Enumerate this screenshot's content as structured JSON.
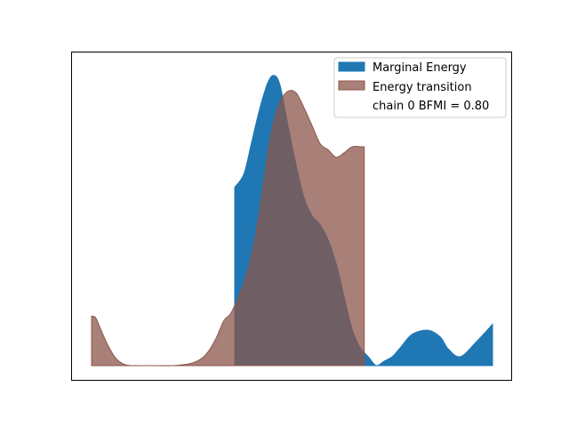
{
  "chart_data": {
    "type": "area",
    "title": "",
    "xlabel": "",
    "ylabel": "",
    "xlim": [
      0,
      1
    ],
    "ylim": [
      0,
      1
    ],
    "grid": false,
    "axes_ticks": false,
    "legend_position": "top-right",
    "series": [
      {
        "name": "Marginal Energy",
        "color": "#1f77b4",
        "x": [
          0.357,
          0.38,
          0.4,
          0.42,
          0.44,
          0.455,
          0.47,
          0.49,
          0.51,
          0.53,
          0.55,
          0.57,
          0.59,
          0.61,
          0.63,
          0.65,
          0.67,
          0.69,
          0.71,
          0.73,
          0.75,
          0.77,
          0.8,
          0.84,
          0.87,
          0.89,
          0.92,
          0.96,
          1.0
        ],
        "values": [
          0.595,
          0.64,
          0.75,
          0.86,
          0.945,
          0.968,
          0.935,
          0.8,
          0.67,
          0.56,
          0.5,
          0.47,
          0.42,
          0.34,
          0.23,
          0.12,
          0.06,
          0.03,
          0.0,
          0.015,
          0.03,
          0.06,
          0.105,
          0.118,
          0.095,
          0.055,
          0.03,
          0.08,
          0.138
        ]
      },
      {
        "name": "Energy transition",
        "color": "#8c564b",
        "x": [
          0.0,
          0.01,
          0.02,
          0.04,
          0.06,
          0.08,
          0.1,
          0.12,
          0.16,
          0.2,
          0.24,
          0.27,
          0.29,
          0.31,
          0.33,
          0.345,
          0.357,
          0.37,
          0.39,
          0.41,
          0.43,
          0.45,
          0.47,
          0.49,
          0.51,
          0.53,
          0.55,
          0.57,
          0.59,
          0.61,
          0.63,
          0.65,
          0.67,
          0.68
        ],
        "values": [
          0.165,
          0.16,
          0.13,
          0.07,
          0.025,
          0.005,
          0.0,
          0.0,
          0.0,
          0.0,
          0.005,
          0.02,
          0.045,
          0.09,
          0.15,
          0.17,
          0.2,
          0.24,
          0.32,
          0.44,
          0.62,
          0.79,
          0.88,
          0.915,
          0.91,
          0.86,
          0.8,
          0.74,
          0.72,
          0.695,
          0.71,
          0.73,
          0.73,
          0.73
        ]
      }
    ],
    "legend_extra_label": "chain  0 BFMI = 0.80"
  },
  "legend": {
    "items": [
      {
        "label": "Marginal Energy",
        "color": "#1f77b4"
      },
      {
        "label": "Energy transition",
        "color": "#8c564b"
      }
    ],
    "extra_label": "chain  0 BFMI = 0.80"
  }
}
